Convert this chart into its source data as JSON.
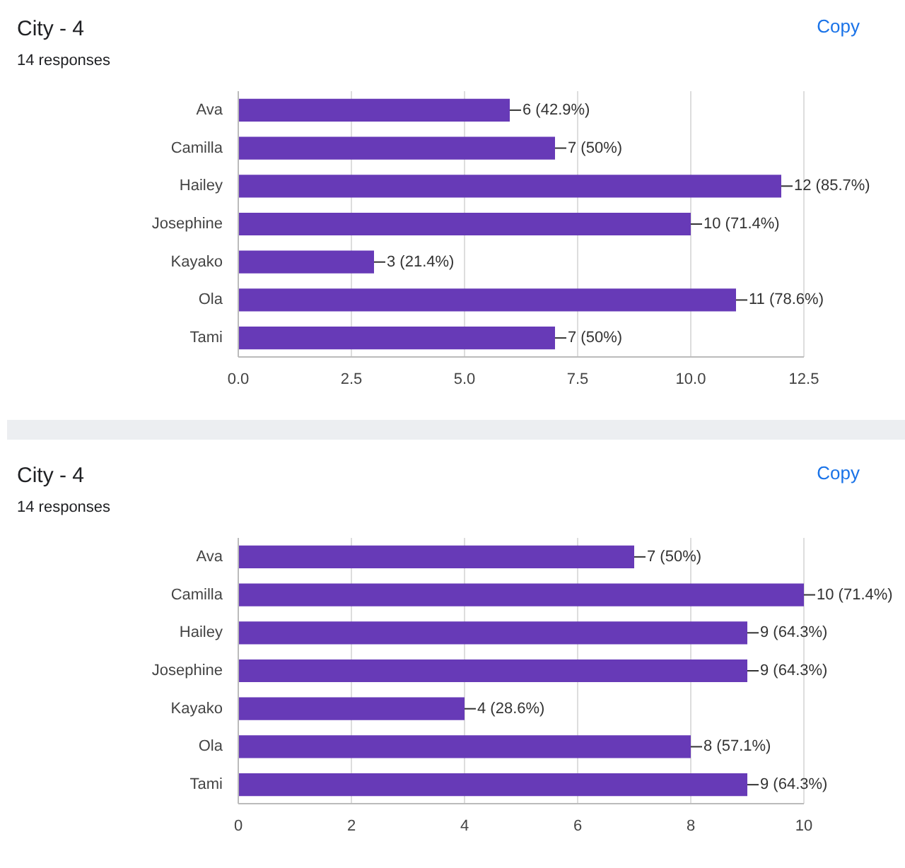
{
  "chart_data": [
    {
      "type": "bar",
      "orientation": "horizontal",
      "title": "City - 4",
      "subtitle": "14 responses",
      "annotations": [
        "Copy"
      ],
      "categories": [
        "Ava",
        "Camilla",
        "Hailey",
        "Josephine",
        "Kayako",
        "Ola",
        "Tami"
      ],
      "values": [
        6,
        7,
        12,
        10,
        3,
        11,
        7
      ],
      "color": "#673ab7",
      "value_labels": [
        "6 (42.9%)",
        "7 (50%)",
        "12 (85.7%)",
        "10 (71.4%)",
        "3 (21.4%)",
        "11 (78.6%)",
        "7 (50%)"
      ],
      "xlim": [
        0,
        12.5
      ],
      "xticks": [
        {
          "value": 0,
          "label": "0.0"
        },
        {
          "value": 2.5,
          "label": "2.5"
        },
        {
          "value": 5,
          "label": "5.0"
        },
        {
          "value": 7.5,
          "label": "7.5"
        },
        {
          "value": 10,
          "label": "10.0"
        },
        {
          "value": 12.5,
          "label": "12.5"
        }
      ],
      "grid": "x",
      "legend": false
    },
    {
      "type": "bar",
      "orientation": "horizontal",
      "title": "City - 4",
      "subtitle": "14 responses",
      "annotations": [
        "Copy"
      ],
      "categories": [
        "Ava",
        "Camilla",
        "Hailey",
        "Josephine",
        "Kayako",
        "Ola",
        "Tami"
      ],
      "values": [
        7,
        10,
        9,
        9,
        4,
        8,
        9
      ],
      "color": "#673ab7",
      "value_labels": [
        "7 (50%)",
        "10 (71.4%)",
        "9 (64.3%)",
        "9 (64.3%)",
        "4 (28.6%)",
        "8 (57.1%)",
        "9 (64.3%)"
      ],
      "xlim": [
        0,
        10
      ],
      "xticks": [
        0,
        2,
        4,
        6,
        8,
        10
      ],
      "grid": "x",
      "legend": false
    }
  ]
}
